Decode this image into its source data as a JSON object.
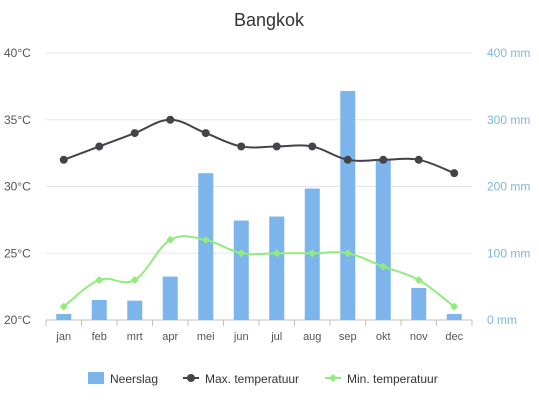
{
  "chart_data": {
    "type": "bar",
    "title": "Bangkok",
    "categories": [
      "jan",
      "feb",
      "mrt",
      "apr",
      "mei",
      "jun",
      "jul",
      "aug",
      "sep",
      "okt",
      "nov",
      "dec"
    ],
    "left_axis": {
      "ticks": [
        "40°C",
        "35°C",
        "30°C",
        "25°C",
        "20°C"
      ],
      "min": 20,
      "max": 40
    },
    "right_axis": {
      "ticks": [
        "400 mm",
        "300 mm",
        "200 mm",
        "100 mm",
        "0 mm"
      ],
      "min": 0,
      "max": 400
    },
    "series": [
      {
        "name": "Neerslag",
        "type": "bar",
        "axis": "right",
        "color": "#7cb5ec",
        "values": [
          9,
          30,
          29,
          65,
          220,
          149,
          155,
          197,
          343,
          241,
          48,
          9
        ]
      },
      {
        "name": "Max. temperatuur",
        "type": "line",
        "axis": "left",
        "color": "#434348",
        "values": [
          32,
          33,
          34,
          35,
          34,
          33,
          33,
          33,
          32,
          32,
          32,
          31
        ]
      },
      {
        "name": "Min. temperatuur",
        "type": "line",
        "axis": "left",
        "color": "#90ed7d",
        "values": [
          21,
          23,
          23,
          26,
          26,
          25,
          25,
          25,
          25,
          24,
          23,
          21
        ]
      }
    ],
    "grid": true,
    "legend_position": "bottom"
  }
}
